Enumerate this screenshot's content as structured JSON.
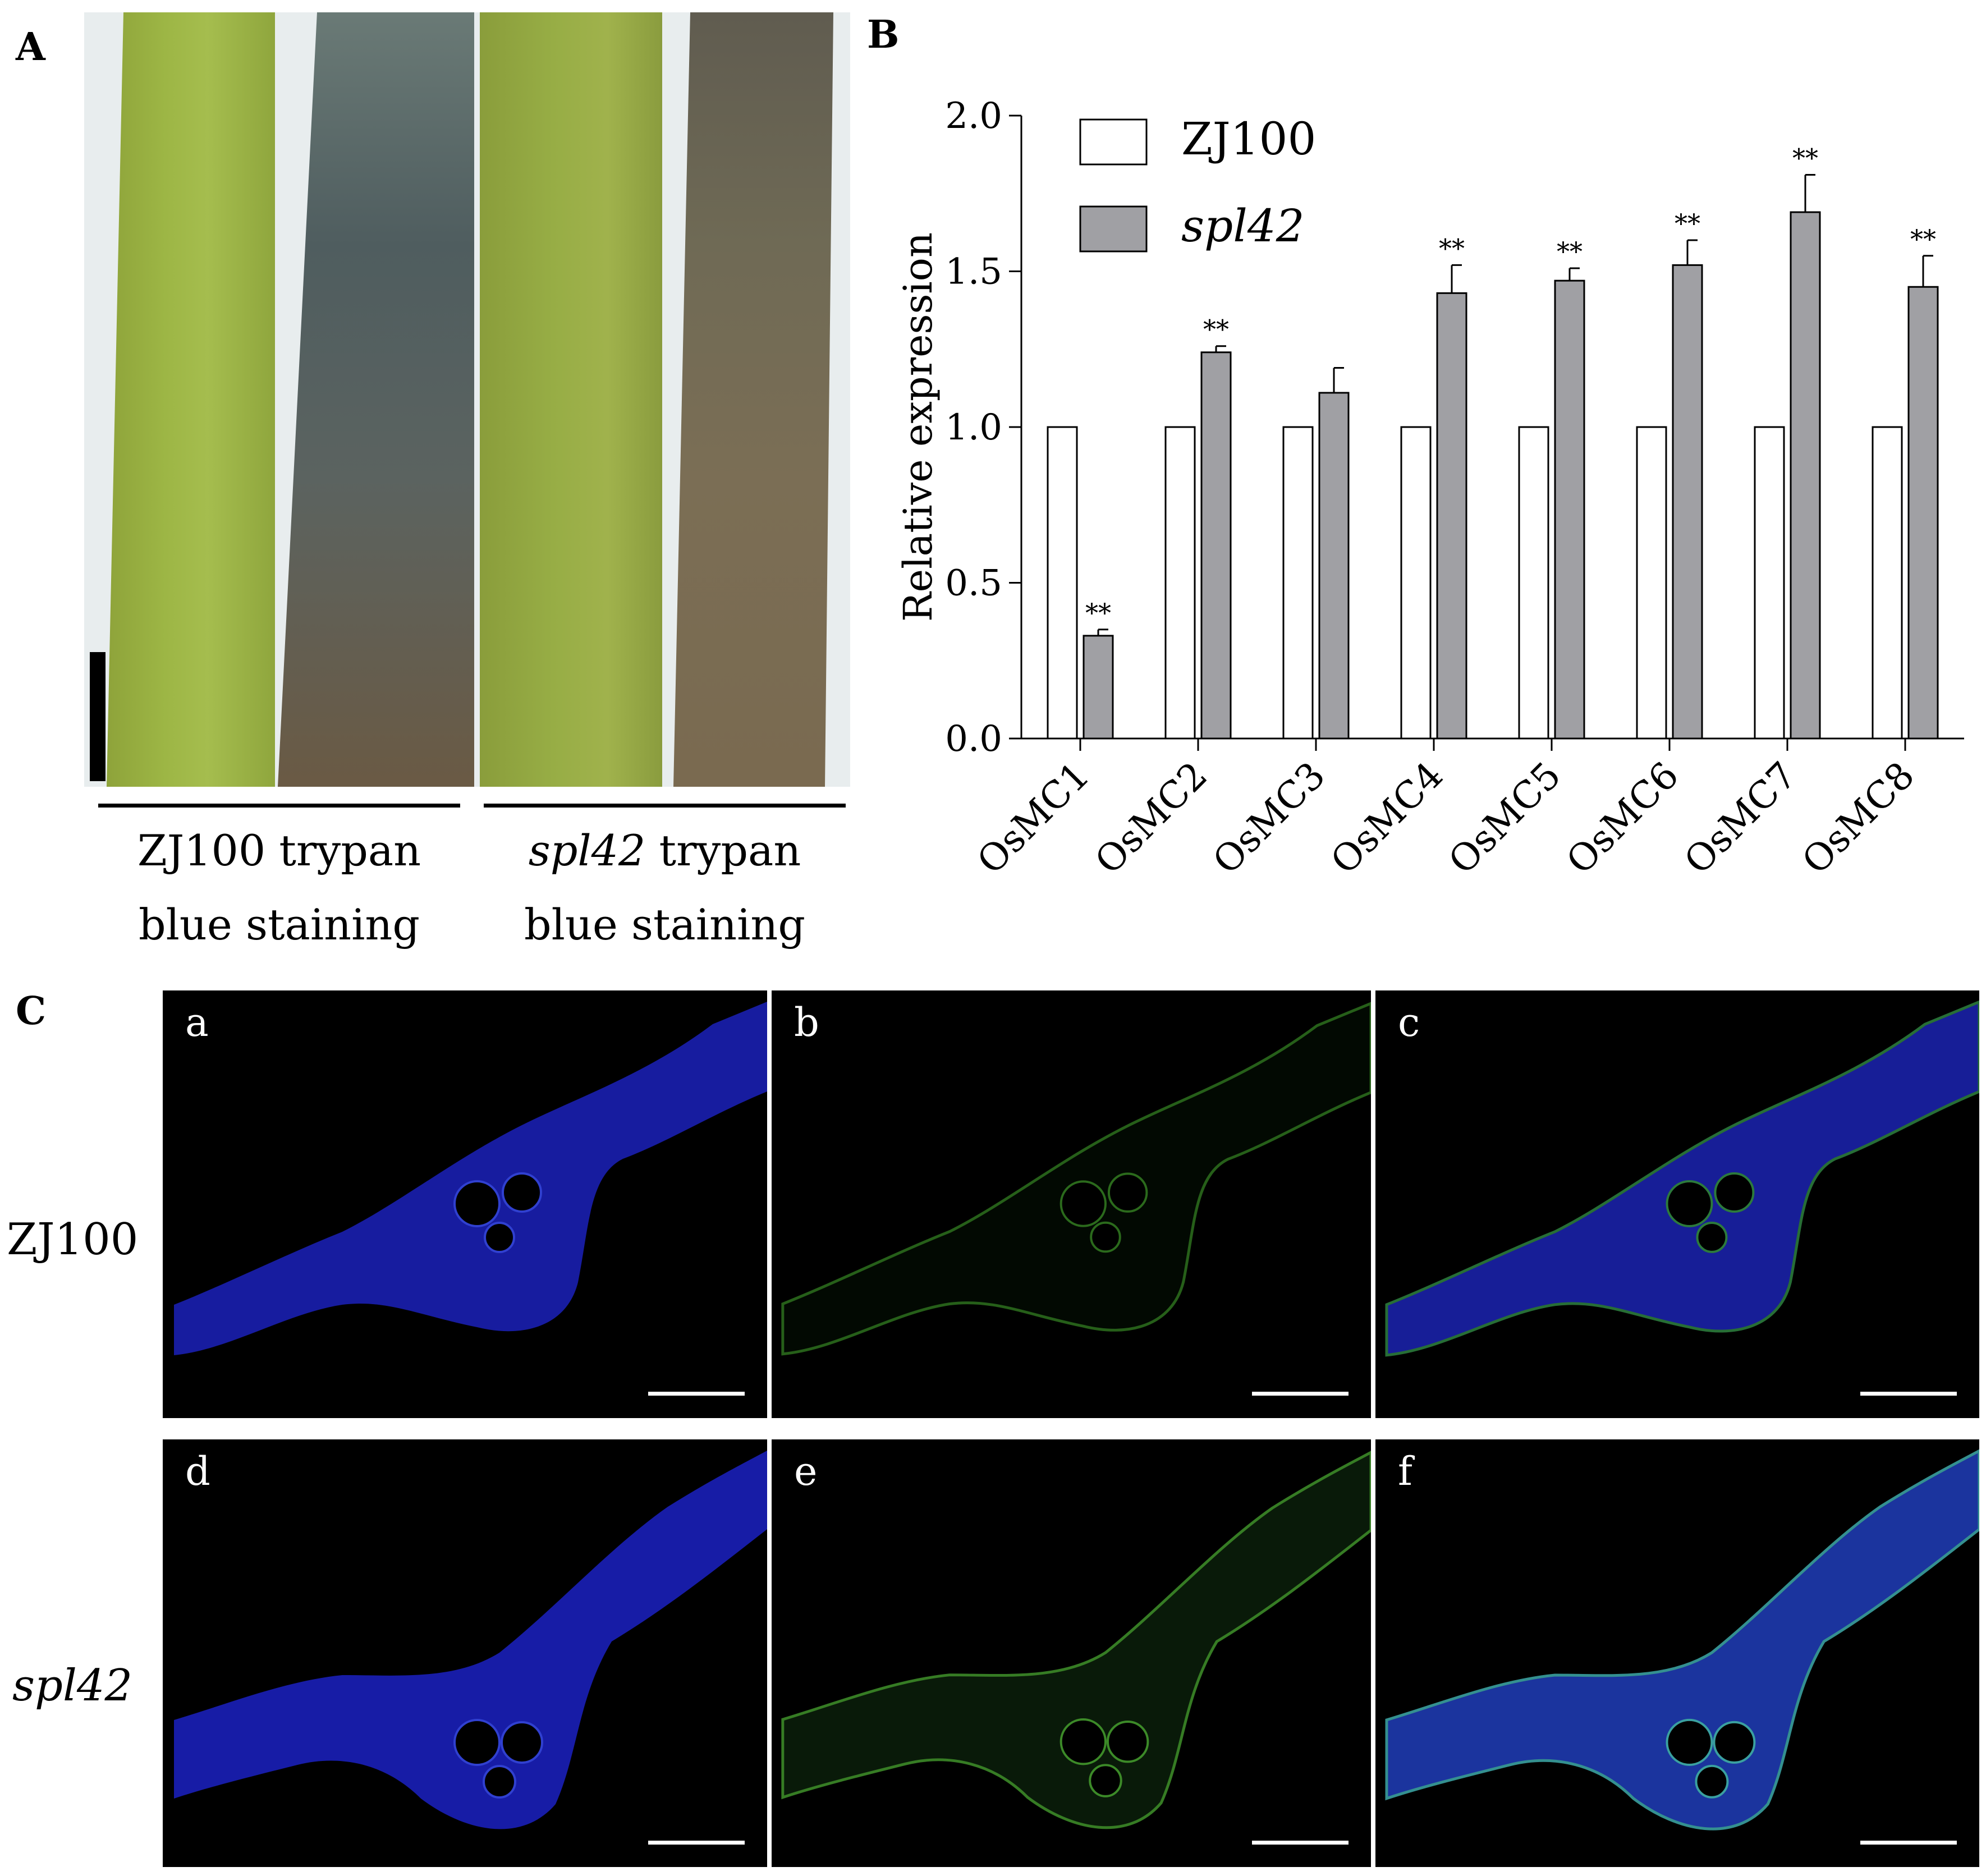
{
  "panels": {
    "A": {
      "label": "A",
      "captions": [
        {
          "line1_italic": "",
          "line1_rest": "ZJ100 trypan",
          "line2": "blue staining"
        },
        {
          "line1_italic": "spl42",
          "line1_rest": " trypan",
          "line2": "blue staining"
        }
      ]
    },
    "B": {
      "label": "B"
    },
    "C": {
      "label": "C",
      "row_labels": [
        "ZJ100",
        "spl42"
      ],
      "subpanels": [
        "a",
        "b",
        "c",
        "d",
        "e",
        "f"
      ]
    }
  },
  "chart_data": {
    "type": "bar",
    "title": "",
    "xlabel": "",
    "ylabel": "Relative expression",
    "ylim": [
      0,
      2.0
    ],
    "yticks": [
      "0.0",
      "0.5",
      "1.0",
      "1.5",
      "2.0"
    ],
    "categories": [
      "OsMC1",
      "OsMC2",
      "OsMC3",
      "OsMC4",
      "OsMC5",
      "OsMC6",
      "OsMC7",
      "OsMC8"
    ],
    "series": [
      {
        "name": "ZJ100",
        "color": "#ffffff",
        "values": [
          1.0,
          1.0,
          1.0,
          1.0,
          1.0,
          1.0,
          1.0,
          1.0
        ],
        "errors": [
          0,
          0,
          0,
          0,
          0,
          0,
          0,
          0
        ]
      },
      {
        "name": "spl42",
        "color": "#a0a0a4",
        "values": [
          0.33,
          1.24,
          1.11,
          1.43,
          1.47,
          1.52,
          1.69,
          1.45
        ],
        "errors": [
          0.02,
          0.02,
          0.08,
          0.09,
          0.04,
          0.08,
          0.12,
          0.1
        ]
      }
    ],
    "significance": [
      "**",
      "**",
      "",
      "**",
      "**",
      "**",
      "**",
      "**"
    ],
    "legend_position": "top-left",
    "grid": false
  }
}
